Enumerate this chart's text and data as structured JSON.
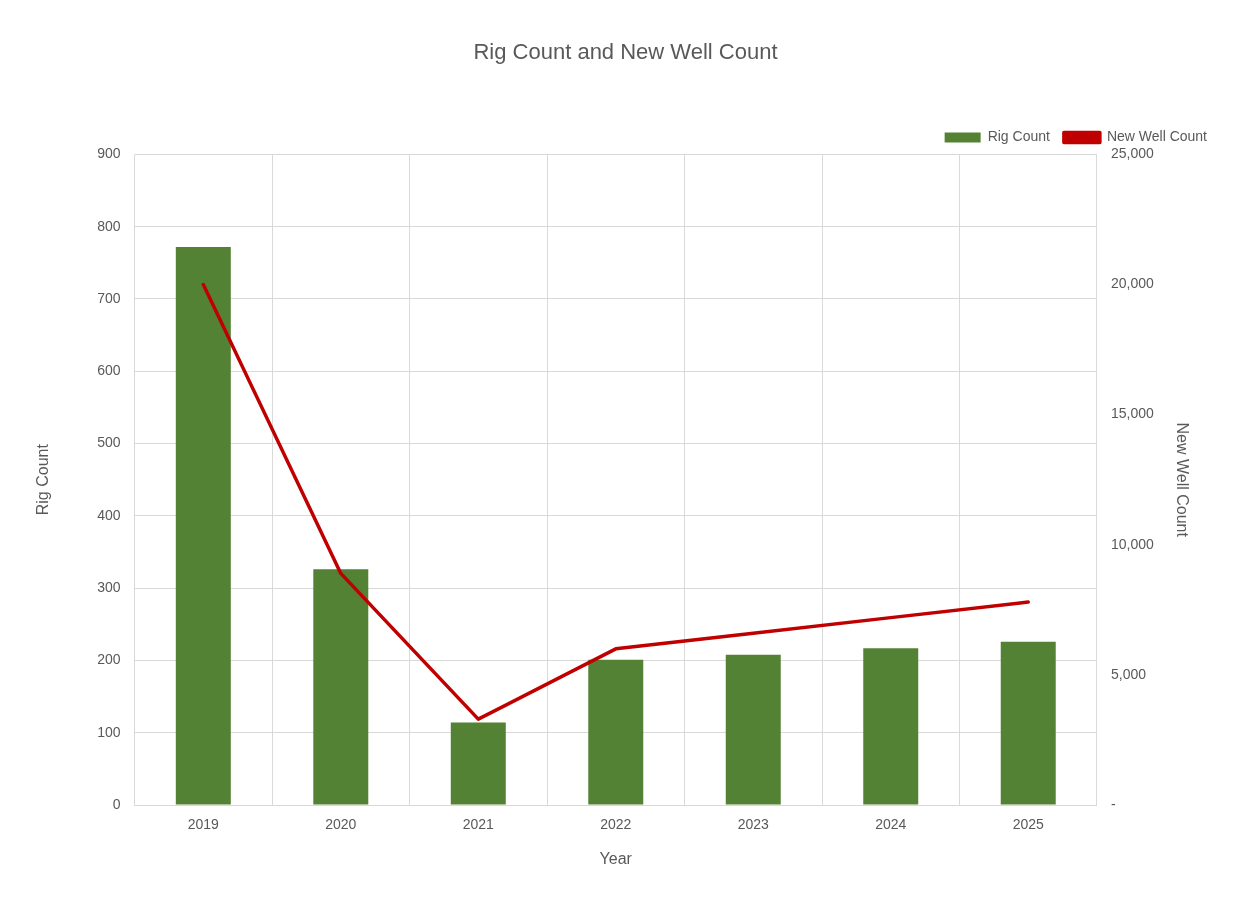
{
  "chart_data": {
    "type": "bar",
    "title": "Rig Count and New Well Count",
    "xlabel": "Year",
    "ylabel": "Rig Count",
    "y2label": "New Well Count",
    "categories": [
      "2019",
      "2020",
      "2021",
      "2022",
      "2023",
      "2024",
      "2025"
    ],
    "series": [
      {
        "name": "Rig Count",
        "color": "#548235",
        "values": [
          772,
          326,
          114,
          201,
          208,
          217,
          226
        ]
      },
      {
        "name": "New Well Count",
        "type": "line",
        "axis": "y2",
        "color": "#c00000",
        "marker": "none",
        "line_style": "solid",
        "values": [
          20000,
          8900,
          3300,
          6000,
          6600,
          7200,
          7800
        ]
      }
    ],
    "ylim": [
      0,
      900
    ],
    "yticks": [
      0,
      100,
      200,
      300,
      400,
      500,
      600,
      700,
      800,
      900
    ],
    "y2lim": [
      0,
      25000
    ],
    "y2ticks": [
      {
        "value": 0,
        "label": "-"
      },
      {
        "value": 5000,
        "label": "5,000"
      },
      {
        "value": 10000,
        "label": "10,000"
      },
      {
        "value": 15000,
        "label": "15,000"
      },
      {
        "value": 20000,
        "label": "20,000"
      },
      {
        "value": 25000,
        "label": "25,000"
      }
    ],
    "grid": true,
    "legend": "top right"
  }
}
